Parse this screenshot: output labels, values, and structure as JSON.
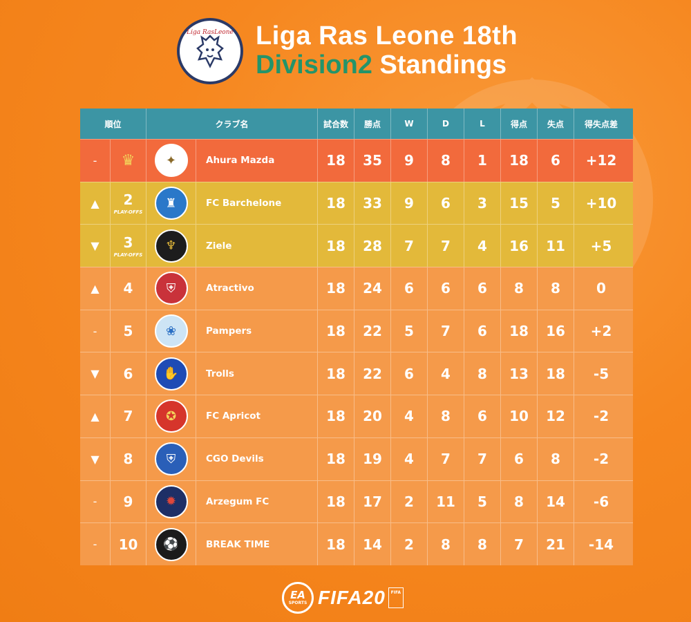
{
  "header": {
    "logo_text": "Liga RasLeone",
    "title_line1": "Liga Ras Leone 18th",
    "title_line2_a": "Division2",
    "title_line2_b": "Standings"
  },
  "columns": {
    "rank": "順位",
    "club": "クラブ名",
    "played": "試合数",
    "points": "勝点",
    "w": "W",
    "d": "D",
    "l": "L",
    "gf": "得点",
    "ga": "失点",
    "gd": "得失点差"
  },
  "rows": [
    {
      "move": "-",
      "rank": "",
      "playoffs": "",
      "name": "Ahura Mazda",
      "played": "18",
      "points": "35",
      "w": "9",
      "d": "8",
      "l": "1",
      "gf": "18",
      "ga": "6",
      "gd": "+12",
      "bg": "#f26a3c",
      "emblem_color": "#ffffff",
      "emblem_fg": "#8a6a2a",
      "emblem_icon": "winged-emblem-icon",
      "champion": true
    },
    {
      "move": "▲",
      "rank": "2",
      "playoffs": "PLAY-OFFS",
      "name": "FC Barchelone",
      "played": "18",
      "points": "33",
      "w": "9",
      "d": "6",
      "l": "3",
      "gf": "15",
      "ga": "5",
      "gd": "+10",
      "bg": "#e3b93a",
      "emblem_color": "#2a78c9",
      "emblem_fg": "#ffffff",
      "emblem_icon": "castle-icon"
    },
    {
      "move": "▼",
      "rank": "3",
      "playoffs": "PLAY-OFFS",
      "name": "Ziele",
      "played": "18",
      "points": "28",
      "w": "7",
      "d": "7",
      "l": "4",
      "gf": "16",
      "ga": "11",
      "gd": "+5",
      "bg": "#e3b93a",
      "emblem_color": "#1d1d1d",
      "emblem_fg": "#e3b93a",
      "emblem_icon": "phoenix-icon"
    },
    {
      "move": "▲",
      "rank": "4",
      "playoffs": "",
      "name": "Atractivo",
      "played": "18",
      "points": "24",
      "w": "6",
      "d": "6",
      "l": "6",
      "gf": "8",
      "ga": "8",
      "gd": "0",
      "bg": "#f59a4a",
      "emblem_color": "#c9323a",
      "emblem_fg": "#ffffff",
      "emblem_icon": "shield-icon"
    },
    {
      "move": "-",
      "rank": "5",
      "playoffs": "",
      "name": "Pampers",
      "played": "18",
      "points": "22",
      "w": "5",
      "d": "7",
      "l": "6",
      "gf": "18",
      "ga": "16",
      "gd": "+2",
      "bg": "#f59a4a",
      "emblem_color": "#cde4f5",
      "emblem_fg": "#2a6fc4",
      "emblem_icon": "diaper-icon"
    },
    {
      "move": "▼",
      "rank": "6",
      "playoffs": "",
      "name": "Trolls",
      "played": "18",
      "points": "22",
      "w": "6",
      "d": "4",
      "l": "8",
      "gf": "13",
      "ga": "18",
      "gd": "-5",
      "bg": "#f59a4a",
      "emblem_color": "#1e4bb5",
      "emblem_fg": "#ffffff",
      "emblem_icon": "troll-icon"
    },
    {
      "move": "▲",
      "rank": "7",
      "playoffs": "",
      "name": "FC Apricot",
      "played": "18",
      "points": "20",
      "w": "4",
      "d": "8",
      "l": "6",
      "gf": "10",
      "ga": "12",
      "gd": "-2",
      "bg": "#f59a4a",
      "emblem_color": "#d6352b",
      "emblem_fg": "#f3d25a",
      "emblem_icon": "eagle-icon"
    },
    {
      "move": "▼",
      "rank": "8",
      "playoffs": "",
      "name": "CGO Devils",
      "played": "18",
      "points": "19",
      "w": "4",
      "d": "7",
      "l": "7",
      "gf": "6",
      "ga": "8",
      "gd": "-2",
      "bg": "#f59a4a",
      "emblem_color": "#2a5fb8",
      "emblem_fg": "#ffffff",
      "emblem_icon": "striped-shield-icon"
    },
    {
      "move": "-",
      "rank": "9",
      "playoffs": "",
      "name": "Arzegum FC",
      "played": "18",
      "points": "17",
      "w": "2",
      "d": "11",
      "l": "5",
      "gf": "8",
      "ga": "14",
      "gd": "-6",
      "bg": "#f59a4a",
      "emblem_color": "#1e2f66",
      "emblem_fg": "#e0473a",
      "emblem_icon": "cannon-icon"
    },
    {
      "move": "-",
      "rank": "10",
      "playoffs": "",
      "name": "BREAK TIME",
      "played": "18",
      "points": "14",
      "w": "2",
      "d": "8",
      "l": "8",
      "gf": "7",
      "ga": "21",
      "gd": "-14",
      "bg": "#f59a4a",
      "emblem_color": "#1b1b1b",
      "emblem_fg": "#ffffff",
      "emblem_icon": "ball-icon"
    }
  ],
  "footer": {
    "ea_big": "EA",
    "ea_small": "SPORTS",
    "fifa": "FIFA20",
    "fifa_badge": "FIFA"
  }
}
